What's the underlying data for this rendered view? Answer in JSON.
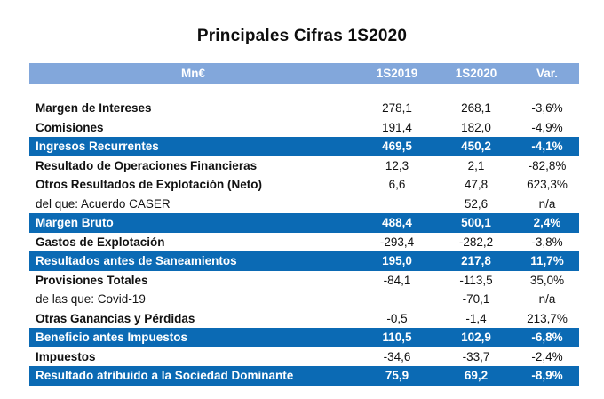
{
  "title": "Principales Cifras 1S2020",
  "colors": {
    "header_bg": "#82a7db",
    "highlight_bg": "#0b6ab4",
    "header_text": "#ffffff",
    "body_text": "#111111"
  },
  "table": {
    "headers": [
      "Mn€",
      "1S2019",
      "1S2020",
      "Var."
    ],
    "rows": [
      {
        "label": "Margen de Intereses",
        "v2019": "278,1",
        "v2020": "268,1",
        "var": "-3,6%",
        "style": "normal"
      },
      {
        "label": "Comisiones",
        "v2019": "191,4",
        "v2020": "182,0",
        "var": "-4,9%",
        "style": "normal"
      },
      {
        "label": "Ingresos Recurrentes",
        "v2019": "469,5",
        "v2020": "450,2",
        "var": "-4,1%",
        "style": "highlight"
      },
      {
        "label": "Resultado de Operaciones Financieras",
        "v2019": "12,3",
        "v2020": "2,1",
        "var": "-82,8%",
        "style": "normal"
      },
      {
        "label": "Otros Resultados de Explotación (Neto)",
        "v2019": "6,6",
        "v2020": "47,8",
        "var": "623,3%",
        "style": "normal"
      },
      {
        "label": "del que: Acuerdo CASER",
        "v2019": "",
        "v2020": "52,6",
        "var": "n/a",
        "style": "sub"
      },
      {
        "label": "Margen Bruto",
        "v2019": "488,4",
        "v2020": "500,1",
        "var": "2,4%",
        "style": "highlight"
      },
      {
        "label": "Gastos de Explotación",
        "v2019": "-293,4",
        "v2020": "-282,2",
        "var": "-3,8%",
        "style": "normal"
      },
      {
        "label": "Resultados antes de Saneamientos",
        "v2019": "195,0",
        "v2020": "217,8",
        "var": "11,7%",
        "style": "highlight"
      },
      {
        "label": "Provisiones Totales",
        "v2019": "-84,1",
        "v2020": "-113,5",
        "var": "35,0%",
        "style": "normal"
      },
      {
        "label": "de las que: Covid-19",
        "v2019": "",
        "v2020": "-70,1",
        "var": "n/a",
        "style": "sub"
      },
      {
        "label": "Otras Ganancias y Pérdidas",
        "v2019": "-0,5",
        "v2020": "-1,4",
        "var": "213,7%",
        "style": "normal"
      },
      {
        "label": "Beneficio antes Impuestos",
        "v2019": "110,5",
        "v2020": "102,9",
        "var": "-6,8%",
        "style": "highlight"
      },
      {
        "label": "Impuestos",
        "v2019": "-34,6",
        "v2020": "-33,7",
        "var": "-2,4%",
        "style": "normal"
      },
      {
        "label": "Resultado atribuido a la Sociedad Dominante",
        "v2019": "75,9",
        "v2020": "69,2",
        "var": "-8,9%",
        "style": "highlight"
      }
    ]
  }
}
